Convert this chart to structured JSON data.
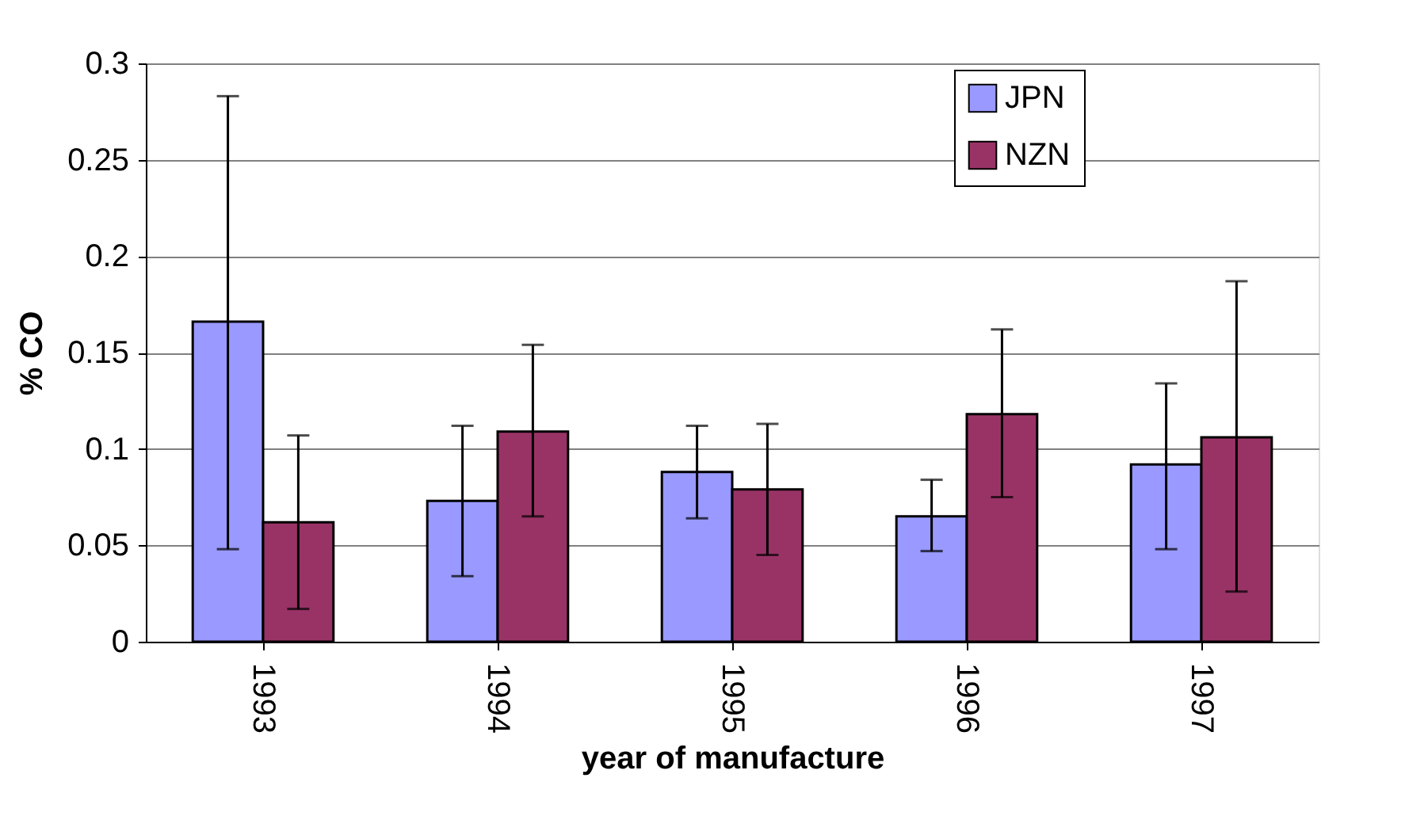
{
  "chart_data": {
    "type": "bar",
    "xlabel": "year of manufacture",
    "ylabel": "% CO",
    "categories": [
      "1993",
      "1994",
      "1995",
      "1996",
      "1997"
    ],
    "series": [
      {
        "name": "JPN",
        "color": "#9999ff",
        "values": [
          0.166,
          0.073,
          0.088,
          0.065,
          0.092
        ],
        "errors": [
          [
            0.048,
            0.283
          ],
          [
            0.034,
            0.112
          ],
          [
            0.064,
            0.112
          ],
          [
            0.047,
            0.084
          ],
          [
            0.048,
            0.134
          ]
        ]
      },
      {
        "name": "NZN",
        "color": "#993366",
        "values": [
          0.062,
          0.109,
          0.079,
          0.118,
          0.106
        ],
        "errors": [
          [
            0.017,
            0.107
          ],
          [
            0.065,
            0.154
          ],
          [
            0.045,
            0.113
          ],
          [
            0.075,
            0.162
          ],
          [
            0.026,
            0.187
          ]
        ]
      }
    ],
    "ylim": [
      0,
      0.3
    ],
    "yticks": [
      0,
      0.05,
      0.1,
      0.15,
      0.2,
      0.25,
      0.3
    ],
    "grid": "y",
    "legend": "top"
  }
}
